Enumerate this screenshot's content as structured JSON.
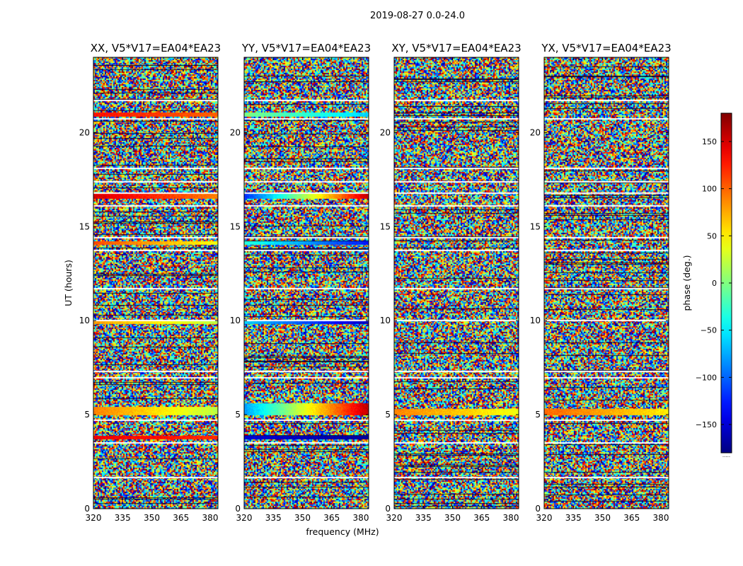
{
  "figure": {
    "suptitle": "2019-08-27 0.0-24.0",
    "shared_xlabel": "frequency (MHz)",
    "shared_ylabel": "UT (hours)"
  },
  "chart_data": {
    "type": "heatmap",
    "x_ticks": [
      "320",
      "335",
      "350",
      "365",
      "380"
    ],
    "x_tick_values": [
      320,
      335,
      350,
      365,
      380
    ],
    "xlim": [
      320,
      384
    ],
    "y_ticks": [
      "0",
      "5",
      "10",
      "15",
      "20"
    ],
    "y_tick_values": [
      0,
      5,
      10,
      15,
      20
    ],
    "ylim": [
      0,
      24
    ],
    "panels": [
      {
        "title": "XX, V5*V17=EA04*EA23",
        "coherent_bands": [
          {
            "t0": 20.85,
            "t1": 21.05,
            "phase0": 130,
            "phase1": 100
          },
          {
            "t0": 16.5,
            "t1": 16.75,
            "phase0": 150,
            "phase1": 90
          },
          {
            "t0": 14.05,
            "t1": 14.2,
            "phase0": 110,
            "phase1": 40
          },
          {
            "t0": 9.85,
            "t1": 10.0,
            "phase0": 80,
            "phase1": 20
          },
          {
            "t0": 5.0,
            "t1": 5.4,
            "phase0": 90,
            "phase1": 20
          },
          {
            "t0": 3.7,
            "t1": 3.85,
            "phase0": 140,
            "phase1": 120
          }
        ]
      },
      {
        "title": "YY, V5*V17=EA04*EA23",
        "coherent_bands": [
          {
            "t0": 20.85,
            "t1": 21.05,
            "phase0": 0,
            "phase1": -60
          },
          {
            "t0": 16.5,
            "t1": 16.75,
            "phase0": -120,
            "phase1": 160
          },
          {
            "t0": 14.05,
            "t1": 14.2,
            "phase0": -30,
            "phase1": -130
          },
          {
            "t0": 9.85,
            "t1": 10.0,
            "phase0": -60,
            "phase1": -160
          },
          {
            "t0": 5.0,
            "t1": 5.6,
            "phase0": -80,
            "phase1": 160
          },
          {
            "t0": 3.7,
            "t1": 3.85,
            "phase0": -150,
            "phase1": -170
          }
        ]
      },
      {
        "title": "XY, V5*V17=EA04*EA23",
        "coherent_bands": [
          {
            "t0": 5.0,
            "t1": 5.3,
            "phase0": 90,
            "phase1": 40
          }
        ]
      },
      {
        "title": "YX, V5*V17=EA04*EA23",
        "coherent_bands": [
          {
            "t0": 5.0,
            "t1": 5.3,
            "phase0": 100,
            "phase1": 50
          }
        ]
      }
    ],
    "flagged_ut_hours": [
      1.7,
      3.55,
      4.75,
      7.0,
      7.35,
      10.05,
      11.75,
      13.75,
      14.45,
      16.15,
      16.8,
      17.4,
      18.15,
      20.75,
      21.75
    ],
    "colorbar": {
      "label": "phase (deg.)",
      "range": [
        -180,
        180
      ],
      "ticks": [
        "150",
        "100",
        "50",
        "0",
        "−50",
        "−100",
        "−150"
      ],
      "tick_values": [
        150,
        100,
        50,
        0,
        -50,
        -100,
        -150
      ],
      "colormap": "jet",
      "offset_text": "....."
    }
  }
}
